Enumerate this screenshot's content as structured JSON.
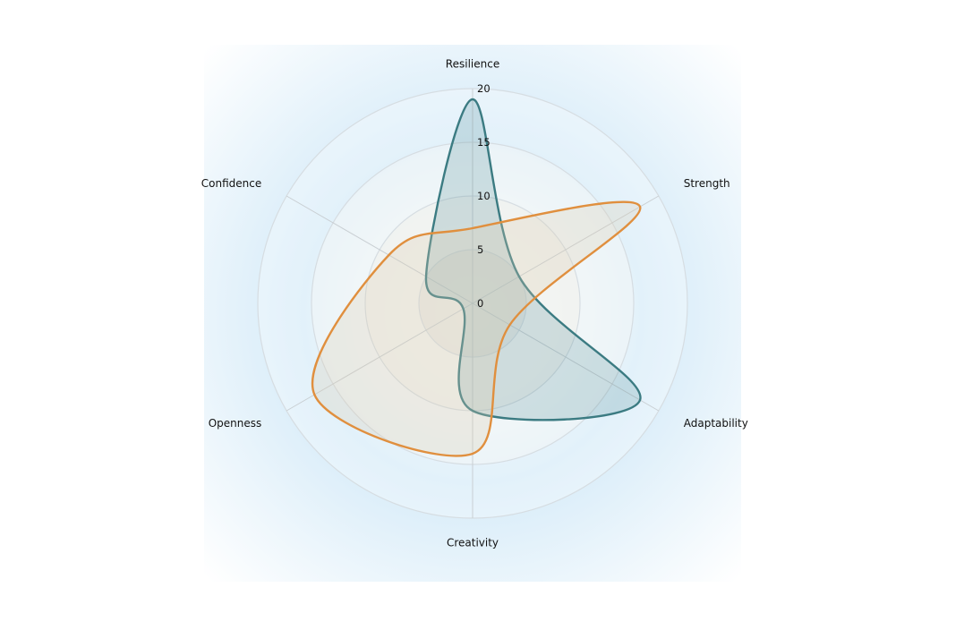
{
  "chart_data": {
    "type": "radar",
    "axes": [
      "Resilience",
      "Strength",
      "Adaptability",
      "Creativity",
      "Openness",
      "Confidence"
    ],
    "radial_ticks": [
      "0",
      "5",
      "10",
      "15",
      "20"
    ],
    "rlim": [
      0,
      20
    ],
    "series": [
      {
        "values": [
          19,
          5,
          18,
          10,
          1,
          5
        ],
        "color": "#3b7b82",
        "fill": "rgba(78,138,145,0.22)"
      },
      {
        "values": [
          7,
          18,
          4,
          14,
          17,
          9
        ],
        "color": "#e08f3e",
        "fill": "rgba(220,205,175,0.28)"
      }
    ],
    "background": {
      "panel_color": "#d9ecf8",
      "grid_color": "#d6dde2",
      "spoke_color": "#c9cfd3"
    }
  }
}
